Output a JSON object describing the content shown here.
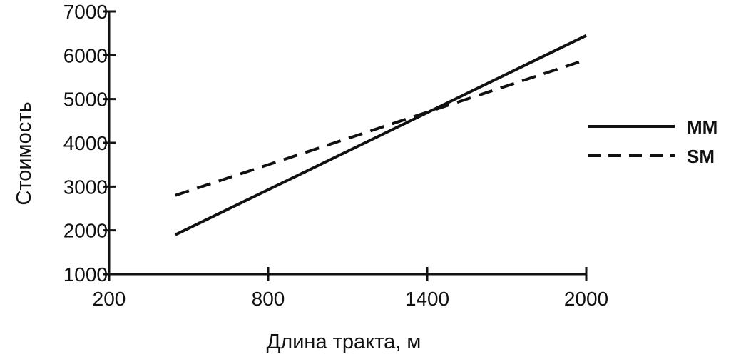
{
  "chart_data": {
    "type": "line",
    "xlabel": "Длина тракта, м",
    "ylabel": "Стоимость",
    "xlim": [
      200,
      2000
    ],
    "ylim": [
      1000,
      7000
    ],
    "x_ticks": [
      "200",
      "800",
      "1400",
      "2000"
    ],
    "y_ticks": [
      "1000",
      "2000",
      "3000",
      "4000",
      "5000",
      "6000",
      "7000"
    ],
    "grid": false,
    "legend_position": "right",
    "series": [
      {
        "name": "MM",
        "style": "solid",
        "color": "#111111",
        "x": [
          450,
          2000
        ],
        "y": [
          1900,
          6450
        ]
      },
      {
        "name": "SM",
        "style": "dashed",
        "color": "#111111",
        "x": [
          450,
          2000
        ],
        "y": [
          2800,
          5900
        ]
      }
    ]
  }
}
